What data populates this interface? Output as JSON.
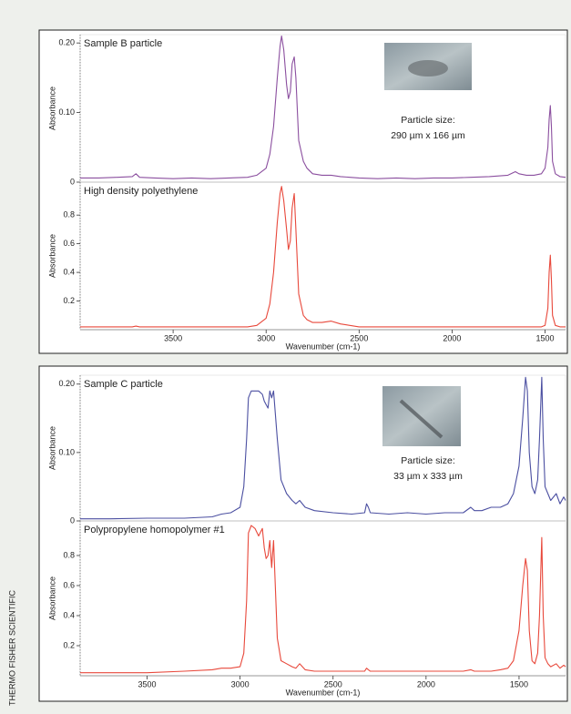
{
  "credit": "THERMO FISHER SCIENTIFIC",
  "chart_data": [
    {
      "type": "line",
      "title": "Sample B particle",
      "y_label": "Absorbance",
      "annotations": [
        "Particle size:",
        "290 µm x 166 µm"
      ],
      "xlim": [
        4000,
        1390
      ],
      "ylim": [
        0,
        0.212
      ],
      "yticks": [
        0,
        {
          "value": 0.1,
          "label": "0.10"
        },
        {
          "value": 0.2,
          "label": "0.20"
        }
      ],
      "x": [
        4000,
        3900,
        3800,
        3720,
        3700,
        3680,
        3600,
        3500,
        3400,
        3300,
        3200,
        3100,
        3050,
        3000,
        2980,
        2960,
        2940,
        2925,
        2917,
        2905,
        2890,
        2880,
        2870,
        2860,
        2849,
        2840,
        2825,
        2800,
        2780,
        2750,
        2700,
        2650,
        2600,
        2500,
        2400,
        2300,
        2200,
        2100,
        2000,
        1900,
        1800,
        1700,
        1660,
        1640,
        1600,
        1560,
        1520,
        1500,
        1485,
        1478,
        1472,
        1466,
        1460,
        1445,
        1420,
        1390
      ],
      "series": [
        {
          "color": "#8b4f9f",
          "values": [
            0.006,
            0.006,
            0.007,
            0.008,
            0.012,
            0.007,
            0.006,
            0.005,
            0.006,
            0.005,
            0.006,
            0.007,
            0.01,
            0.02,
            0.04,
            0.08,
            0.15,
            0.195,
            0.21,
            0.19,
            0.14,
            0.12,
            0.13,
            0.17,
            0.18,
            0.15,
            0.06,
            0.03,
            0.02,
            0.012,
            0.01,
            0.01,
            0.008,
            0.006,
            0.005,
            0.006,
            0.005,
            0.006,
            0.006,
            0.007,
            0.008,
            0.01,
            0.015,
            0.012,
            0.01,
            0.01,
            0.012,
            0.02,
            0.05,
            0.09,
            0.11,
            0.08,
            0.03,
            0.012,
            0.008,
            0.007
          ]
        }
      ]
    },
    {
      "type": "line",
      "title": "High density polyethylene",
      "y_label": "Absorbance",
      "x_label": "Wavenumber (cm-1)",
      "xlim": [
        4000,
        1390
      ],
      "ylim": [
        0,
        1.03
      ],
      "xticks": [
        3500,
        3000,
        2500,
        2000,
        1500
      ],
      "yticks": [
        0.2,
        0.4,
        0.6,
        0.8
      ],
      "x": [
        4000,
        3900,
        3800,
        3720,
        3700,
        3680,
        3600,
        3500,
        3400,
        3300,
        3200,
        3100,
        3050,
        3000,
        2980,
        2960,
        2940,
        2925,
        2917,
        2905,
        2890,
        2880,
        2870,
        2860,
        2849,
        2840,
        2825,
        2800,
        2780,
        2750,
        2700,
        2650,
        2600,
        2500,
        2400,
        2300,
        2200,
        2100,
        2000,
        1900,
        1800,
        1700,
        1660,
        1640,
        1600,
        1560,
        1520,
        1500,
        1485,
        1478,
        1472,
        1466,
        1460,
        1445,
        1420,
        1390
      ],
      "series": [
        {
          "color": "#e8483b",
          "values": [
            0.02,
            0.02,
            0.02,
            0.02,
            0.025,
            0.02,
            0.02,
            0.02,
            0.02,
            0.02,
            0.02,
            0.02,
            0.03,
            0.08,
            0.18,
            0.4,
            0.75,
            0.95,
            1.0,
            0.9,
            0.7,
            0.56,
            0.62,
            0.85,
            0.95,
            0.7,
            0.25,
            0.1,
            0.07,
            0.05,
            0.05,
            0.06,
            0.04,
            0.02,
            0.02,
            0.02,
            0.02,
            0.02,
            0.02,
            0.02,
            0.02,
            0.02,
            0.02,
            0.02,
            0.02,
            0.02,
            0.02,
            0.03,
            0.15,
            0.4,
            0.52,
            0.35,
            0.1,
            0.03,
            0.02,
            0.02
          ]
        }
      ]
    },
    {
      "type": "line",
      "title": "Sample C particle",
      "y_label": "Absorbance",
      "annotations": [
        "Particle size:",
        "33 µm x 333 µm"
      ],
      "xlim": [
        3860,
        1250
      ],
      "ylim": [
        0,
        0.213
      ],
      "yticks": [
        0,
        {
          "value": 0.1,
          "label": "0.10"
        },
        {
          "value": 0.2,
          "label": "0.20"
        }
      ],
      "x": [
        3860,
        3700,
        3500,
        3300,
        3150,
        3100,
        3050,
        3000,
        2980,
        2965,
        2955,
        2940,
        2920,
        2900,
        2880,
        2870,
        2860,
        2850,
        2840,
        2830,
        2820,
        2800,
        2780,
        2750,
        2720,
        2700,
        2680,
        2650,
        2600,
        2500,
        2400,
        2330,
        2320,
        2310,
        2300,
        2200,
        2100,
        2000,
        1900,
        1800,
        1760,
        1740,
        1700,
        1650,
        1600,
        1560,
        1530,
        1500,
        1480,
        1465,
        1455,
        1445,
        1430,
        1415,
        1400,
        1390,
        1378,
        1370,
        1360,
        1345,
        1330,
        1300,
        1280,
        1260,
        1250
      ],
      "series": [
        {
          "color": "#4b4fa1",
          "values": [
            0.003,
            0.003,
            0.004,
            0.004,
            0.006,
            0.01,
            0.012,
            0.02,
            0.05,
            0.12,
            0.18,
            0.19,
            0.19,
            0.19,
            0.185,
            0.175,
            0.17,
            0.165,
            0.19,
            0.18,
            0.19,
            0.12,
            0.06,
            0.04,
            0.03,
            0.025,
            0.03,
            0.02,
            0.015,
            0.012,
            0.01,
            0.012,
            0.025,
            0.02,
            0.012,
            0.01,
            0.012,
            0.01,
            0.012,
            0.012,
            0.02,
            0.015,
            0.015,
            0.02,
            0.02,
            0.025,
            0.04,
            0.08,
            0.15,
            0.21,
            0.19,
            0.1,
            0.05,
            0.04,
            0.06,
            0.12,
            0.21,
            0.12,
            0.05,
            0.04,
            0.03,
            0.04,
            0.025,
            0.035,
            0.03
          ]
        }
      ]
    },
    {
      "type": "line",
      "title": "Polypropylene homopolymer #1",
      "y_label": "Absorbance",
      "x_label": "Wavenumber (cm-1)",
      "xlim": [
        3860,
        1250
      ],
      "ylim": [
        0,
        1.03
      ],
      "xticks": [
        3500,
        3000,
        2500,
        2000,
        1500
      ],
      "yticks": [
        0.2,
        0.4,
        0.6,
        0.8
      ],
      "x": [
        3860,
        3700,
        3500,
        3300,
        3150,
        3100,
        3050,
        3000,
        2980,
        2965,
        2955,
        2940,
        2920,
        2900,
        2880,
        2870,
        2860,
        2850,
        2840,
        2830,
        2820,
        2800,
        2780,
        2750,
        2720,
        2700,
        2680,
        2650,
        2600,
        2500,
        2400,
        2330,
        2320,
        2310,
        2300,
        2200,
        2100,
        2000,
        1900,
        1800,
        1760,
        1740,
        1700,
        1650,
        1600,
        1560,
        1530,
        1500,
        1480,
        1465,
        1455,
        1445,
        1430,
        1415,
        1400,
        1390,
        1378,
        1370,
        1360,
        1345,
        1330,
        1300,
        1280,
        1260,
        1250
      ],
      "series": [
        {
          "color": "#e8483b",
          "values": [
            0.02,
            0.02,
            0.02,
            0.03,
            0.04,
            0.05,
            0.05,
            0.06,
            0.15,
            0.5,
            0.95,
            1.0,
            0.98,
            0.93,
            0.98,
            0.85,
            0.78,
            0.8,
            0.9,
            0.72,
            0.9,
            0.25,
            0.1,
            0.08,
            0.06,
            0.05,
            0.08,
            0.04,
            0.03,
            0.03,
            0.03,
            0.03,
            0.05,
            0.04,
            0.03,
            0.03,
            0.03,
            0.03,
            0.03,
            0.03,
            0.04,
            0.03,
            0.03,
            0.03,
            0.04,
            0.05,
            0.1,
            0.3,
            0.6,
            0.78,
            0.7,
            0.3,
            0.1,
            0.08,
            0.15,
            0.4,
            0.92,
            0.4,
            0.12,
            0.08,
            0.06,
            0.08,
            0.05,
            0.07,
            0.06
          ]
        }
      ]
    }
  ]
}
